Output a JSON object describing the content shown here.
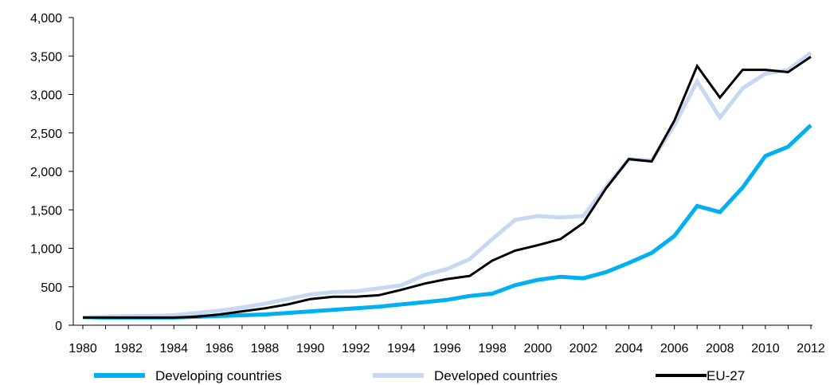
{
  "chart_data": {
    "type": "line",
    "title": "",
    "xlabel": "",
    "ylabel": "",
    "x": [
      1980,
      1981,
      1982,
      1983,
      1984,
      1985,
      1986,
      1987,
      1988,
      1989,
      1990,
      1991,
      1992,
      1993,
      1994,
      1995,
      1996,
      1997,
      1998,
      1999,
      2000,
      2001,
      2002,
      2003,
      2004,
      2005,
      2006,
      2007,
      2008,
      2009,
      2010,
      2011,
      2012
    ],
    "ylim": [
      0,
      4000
    ],
    "y_ticks": [
      "0",
      "500",
      "1,000",
      "1,500",
      "2,000",
      "2,500",
      "3,000",
      "3,500",
      "4,000"
    ],
    "x_ticks": [
      "1980",
      "1982",
      "1984",
      "1986",
      "1988",
      "1990",
      "1992",
      "1994",
      "1996",
      "1998",
      "2000",
      "2002",
      "2004",
      "2006",
      "2008",
      "2010",
      "2012"
    ],
    "legend_position": "bottom",
    "series": [
      {
        "name": "Developing countries",
        "color": "#00b0f0",
        "values": [
          100,
          100,
          100,
          100,
          100,
          110,
          120,
          130,
          140,
          160,
          180,
          200,
          220,
          240,
          270,
          300,
          330,
          380,
          410,
          520,
          590,
          630,
          610,
          690,
          810,
          940,
          1160,
          1550,
          1470,
          1790,
          2200,
          2320,
          2600
        ]
      },
      {
        "name": "Developed countries",
        "color": "#c6d9f1",
        "values": [
          100,
          110,
          120,
          120,
          130,
          160,
          190,
          230,
          280,
          340,
          400,
          430,
          440,
          480,
          520,
          650,
          730,
          860,
          1120,
          1370,
          1420,
          1400,
          1420,
          1800,
          2160,
          2140,
          2600,
          3170,
          2700,
          3080,
          3270,
          3320,
          3540
        ]
      },
      {
        "name": "EU-27",
        "color": "#000000",
        "values": [
          100,
          100,
          100,
          100,
          100,
          110,
          140,
          180,
          220,
          270,
          340,
          370,
          370,
          390,
          460,
          540,
          600,
          640,
          840,
          970,
          1040,
          1120,
          1330,
          1780,
          2160,
          2130,
          2660,
          3370,
          2960,
          3320,
          3320,
          3290,
          3490
        ]
      }
    ]
  }
}
